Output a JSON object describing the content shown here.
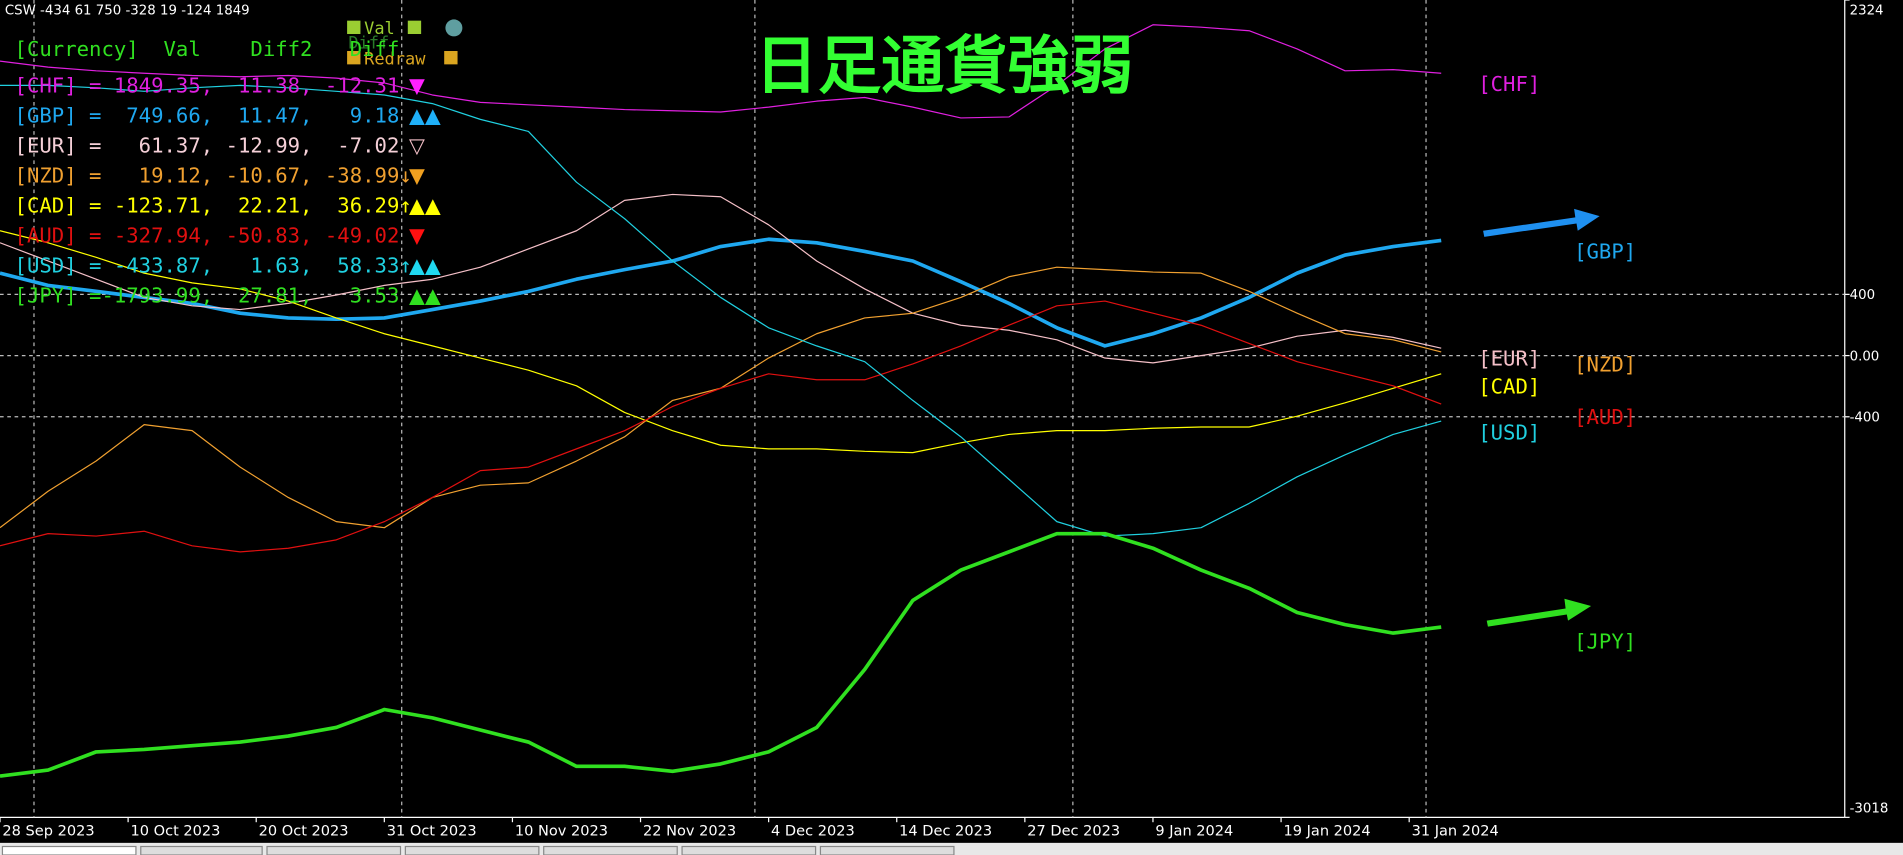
{
  "chart_data": {
    "type": "line",
    "header": "CSW -434 61 750 -328 19 -124 1849",
    "title": "日足通貨強弱",
    "buttons": [
      "Val",
      "Diff",
      "Redraw"
    ],
    "info_header": "[Currency]  Val    Diff2   Diff",
    "info_rows": [
      {
        "text": "[CHF] = 1849.35,  11.38, -12.31",
        "color": "#e020e0",
        "signal": "▼",
        "signal_color": "#ff20ff"
      },
      {
        "text": "[GBP] =  749.66,  11.47,   9.18",
        "color": "#1fa8f0",
        "signal": "▲▲",
        "signal_color": "#1fb0f8"
      },
      {
        "text": "[EUR] =   61.37, -12.99,  -7.02",
        "color": "#f5d0d8",
        "signal": "▽",
        "signal_color": "#f5c0c8"
      },
      {
        "text": "[NZD] =   19.12, -10.67, -38.99↓",
        "color": "#f0a030",
        "signal": "▼",
        "signal_color": "#f0a020"
      },
      {
        "text": "[CAD] = -123.71,  22.21,  36.29↑",
        "color": "#ffff00",
        "signal": "▲▲",
        "signal_color": "#ffff00"
      },
      {
        "text": "[AUD] = -327.94, -50.83, -49.02",
        "color": "#e01010",
        "signal": "▼",
        "signal_color": "#ff1010"
      },
      {
        "text": "[USD] = -433.87,   1.63,  58.33↑",
        "color": "#20d0e0",
        "signal": "▲▲",
        "signal_color": "#20d8f0"
      },
      {
        "text": "[JPY] =-1793.99,  27.81,   3.53",
        "color": "#30e020",
        "signal": "▲▲",
        "signal_color": "#30e020"
      }
    ],
    "x": [
      0,
      3,
      6,
      9,
      12,
      15,
      18,
      21,
      24,
      27,
      30,
      33,
      36,
      39,
      42,
      45,
      48,
      51,
      54,
      57,
      60,
      63,
      66,
      69,
      72,
      75,
      78,
      81,
      84,
      87,
      90
    ],
    "xlim": [
      0,
      115.2
    ],
    "xticks": [
      {
        "value": 0,
        "label": "28 Sep 2023"
      },
      {
        "value": 8,
        "label": "10 Oct 2023"
      },
      {
        "value": 16,
        "label": "20 Oct 2023"
      },
      {
        "value": 24,
        "label": "31 Oct 2023"
      },
      {
        "value": 32,
        "label": "10 Nov 2023"
      },
      {
        "value": 40,
        "label": "22 Nov 2023"
      },
      {
        "value": 48,
        "label": "4 Dec 2023"
      },
      {
        "value": 56,
        "label": "14 Dec 2023"
      },
      {
        "value": 64,
        "label": "27 Dec 2023"
      },
      {
        "value": 72,
        "label": "9 Jan 2024"
      },
      {
        "value": 80,
        "label": "19 Jan 2024"
      },
      {
        "value": 88,
        "label": "31 Jan 2024"
      }
    ],
    "ylim": [
      -3018,
      2324
    ],
    "yticks": [
      2324,
      400,
      {
        "value": 0,
        "label": "0.00"
      },
      -400,
      -3018
    ],
    "grid": true,
    "series": [
      {
        "name": "[CHF]",
        "color": "#e020e0",
        "line_width": 1,
        "values": [
          1925,
          1885,
          1861,
          1845,
          1830,
          1822,
          1830,
          1814,
          1782,
          1703,
          1655,
          1639,
          1624,
          1608,
          1600,
          1592,
          1624,
          1663,
          1687,
          1624,
          1553,
          1560,
          1766,
          2004,
          2162,
          2146,
          2123,
          2004,
          1861,
          1869,
          1845
        ]
      },
      {
        "name": "[GBP]",
        "color": "#1fa8f0",
        "line_width": 3,
        "values": [
          539,
          459,
          420,
          380,
          341,
          277,
          246,
          238,
          246,
          301,
          356,
          420,
          499,
          562,
          618,
          713,
          760,
          737,
          681,
          618,
          483,
          341,
          182,
          63,
          143,
          246,
          380,
          539,
          657,
          713,
          752
        ]
      },
      {
        "name": "[EUR]",
        "color": "#f5c0c8",
        "line_width": 1,
        "values": [
          737,
          618,
          499,
          380,
          325,
          301,
          341,
          396,
          459,
          499,
          578,
          697,
          816,
          1014,
          1053,
          1038,
          855,
          618,
          436,
          277,
          198,
          166,
          103,
          -16,
          -48,
          0,
          48,
          127,
          166,
          119,
          48
        ]
      },
      {
        "name": "[NZD]",
        "color": "#f0a030",
        "line_width": 1,
        "values": [
          -1125,
          -887,
          -689,
          -451,
          -491,
          -729,
          -927,
          -1085,
          -1125,
          -927,
          -847,
          -832,
          -689,
          -531,
          -293,
          -214,
          -16,
          143,
          246,
          277,
          380,
          515,
          578,
          562,
          546,
          539,
          420,
          277,
          143,
          103,
          24
        ]
      },
      {
        "name": "[CAD]",
        "color": "#ffff00",
        "line_width": 1,
        "values": [
          816,
          737,
          642,
          539,
          475,
          436,
          356,
          246,
          143,
          63,
          -16,
          -95,
          -198,
          -372,
          -491,
          -586,
          -610,
          -610,
          -626,
          -634,
          -570,
          -515,
          -491,
          -491,
          -475,
          -467,
          -467,
          -396,
          -309,
          -214,
          -119
        ]
      },
      {
        "name": "[AUD]",
        "color": "#e01010",
        "line_width": 1,
        "values": [
          -1243,
          -1164,
          -1180,
          -1148,
          -1243,
          -1283,
          -1259,
          -1204,
          -1085,
          -927,
          -752,
          -729,
          -610,
          -491,
          -333,
          -214,
          -119,
          -158,
          -158,
          -55,
          63,
          198,
          325,
          356,
          277,
          198,
          79,
          -40,
          -119,
          -198,
          -317
        ]
      },
      {
        "name": "[USD]",
        "color": "#20d0e0",
        "line_width": 1,
        "values": [
          1766,
          1766,
          1750,
          1727,
          1750,
          1766,
          1750,
          1727,
          1703,
          1647,
          1544,
          1465,
          1133,
          895,
          618,
          380,
          182,
          63,
          -40,
          -293,
          -531,
          -808,
          -1085,
          -1180,
          -1164,
          -1125,
          -966,
          -792,
          -649,
          -515,
          -428
        ]
      },
      {
        "name": "[JPY]",
        "color": "#30e020",
        "line_width": 3,
        "values": [
          -2748,
          -2709,
          -2590,
          -2574,
          -2550,
          -2526,
          -2487,
          -2431,
          -2313,
          -2368,
          -2447,
          -2526,
          -2685,
          -2685,
          -2717,
          -2669,
          -2590,
          -2431,
          -2051,
          -1600,
          -1402,
          -1283,
          -1164,
          -1164,
          -1259,
          -1402,
          -1521,
          -1679,
          -1758,
          -1814,
          -1774
        ]
      }
    ]
  }
}
